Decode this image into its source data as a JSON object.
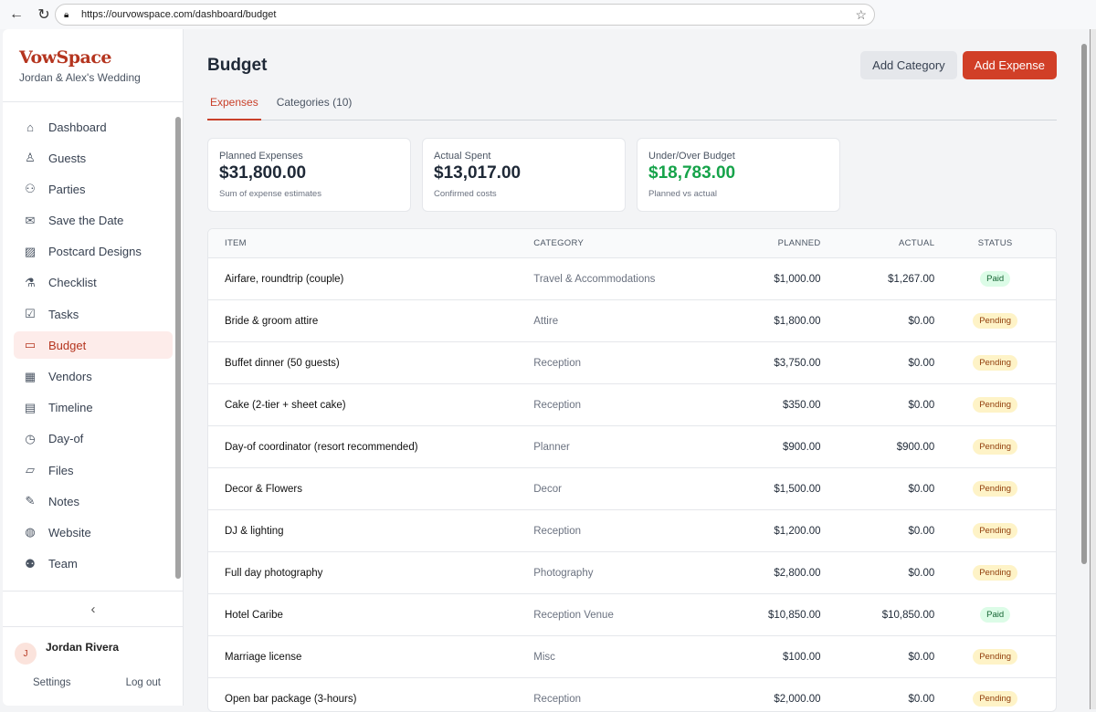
{
  "browser": {
    "url": "https://ourvowspace.com/dashboard/budget"
  },
  "sidebar": {
    "logo": "VowSpace",
    "subtitle": "Jordan & Alex's Wedding",
    "items": [
      {
        "label": "Dashboard",
        "icon": "home-icon",
        "glyph": "⌂"
      },
      {
        "label": "Guests",
        "icon": "user-icon",
        "glyph": "♙"
      },
      {
        "label": "Parties",
        "icon": "users-icon",
        "glyph": "⚇"
      },
      {
        "label": "Save the Date",
        "icon": "mail-icon",
        "glyph": "✉"
      },
      {
        "label": "Postcard Designs",
        "icon": "image-icon",
        "glyph": "▨"
      },
      {
        "label": "Checklist",
        "icon": "flask-icon",
        "glyph": "⚗"
      },
      {
        "label": "Tasks",
        "icon": "clipboard-check-icon",
        "glyph": "☑"
      },
      {
        "label": "Budget",
        "icon": "credit-card-icon",
        "glyph": "▭",
        "active": true
      },
      {
        "label": "Vendors",
        "icon": "building-icon",
        "glyph": "▦"
      },
      {
        "label": "Timeline",
        "icon": "calendar-icon",
        "glyph": "▤"
      },
      {
        "label": "Day-of",
        "icon": "clock-icon",
        "glyph": "◷"
      },
      {
        "label": "Files",
        "icon": "folder-icon",
        "glyph": "▱"
      },
      {
        "label": "Notes",
        "icon": "edit-icon",
        "glyph": "✎"
      },
      {
        "label": "Website",
        "icon": "globe-icon",
        "glyph": "◍"
      },
      {
        "label": "Team",
        "icon": "team-icon",
        "glyph": "⚉"
      }
    ],
    "collapse": "‹",
    "user": {
      "initial": "J",
      "name": "Jordan Rivera"
    },
    "settings": "Settings",
    "logout": "Log out"
  },
  "header": {
    "title": "Budget",
    "add_category": "Add Category",
    "add_expense": "Add Expense"
  },
  "tabs": [
    {
      "label": "Expenses",
      "active": true
    },
    {
      "label": "Categories (10)"
    }
  ],
  "summary": [
    {
      "label": "Planned Expenses",
      "value": "$31,800.00",
      "sub": "Sum of expense estimates"
    },
    {
      "label": "Actual Spent",
      "value": "$13,017.00",
      "sub": "Confirmed costs"
    },
    {
      "label": "Under/Over Budget",
      "value": "$18,783.00",
      "sub": "Planned vs actual",
      "color": "#16a34a"
    }
  ],
  "table": {
    "columns": [
      "ITEM",
      "CATEGORY",
      "PLANNED",
      "ACTUAL",
      "STATUS"
    ],
    "rows": [
      [
        "Airfare, roundtrip (couple)",
        "Travel & Accommodations",
        "$1,000.00",
        "$1,267.00",
        "Paid"
      ],
      [
        "Bride & groom attire",
        "Attire",
        "$1,800.00",
        "$0.00",
        "Pending"
      ],
      [
        "Buffet dinner (50 guests)",
        "Reception",
        "$3,750.00",
        "$0.00",
        "Pending"
      ],
      [
        "Cake (2-tier + sheet cake)",
        "Reception",
        "$350.00",
        "$0.00",
        "Pending"
      ],
      [
        "Day-of coordinator (resort recommended)",
        "Planner",
        "$900.00",
        "$900.00",
        "Pending"
      ],
      [
        "Decor & Flowers",
        "Decor",
        "$1,500.00",
        "$0.00",
        "Pending"
      ],
      [
        "DJ & lighting",
        "Reception",
        "$1,200.00",
        "$0.00",
        "Pending"
      ],
      [
        "Full day photography",
        "Photography",
        "$2,800.00",
        "$0.00",
        "Pending"
      ],
      [
        "Hotel Caribe",
        "Reception Venue",
        "$10,850.00",
        "$10,850.00",
        "Paid"
      ],
      [
        "Marriage license",
        "Misc",
        "$100.00",
        "$0.00",
        "Pending"
      ],
      [
        "Open bar package (3-hours)",
        "Reception",
        "$2,000.00",
        "$0.00",
        "Pending"
      ]
    ]
  }
}
